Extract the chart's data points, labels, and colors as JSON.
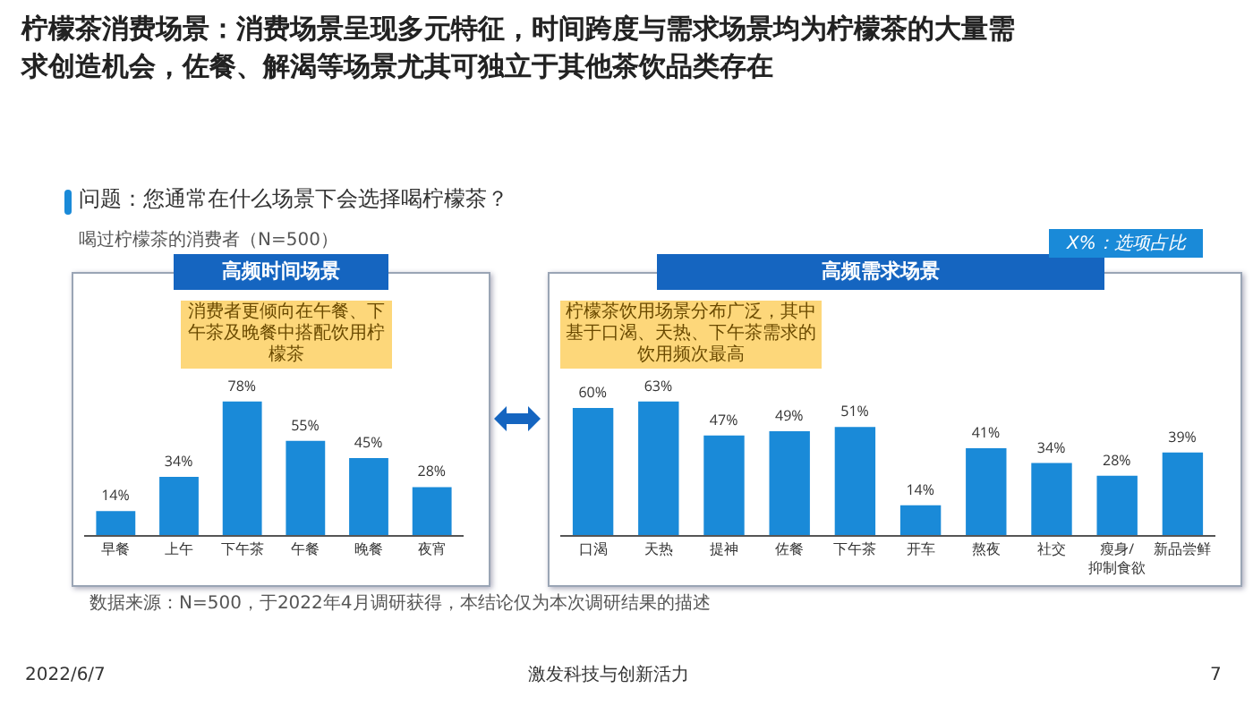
{
  "chart_data": [
    {
      "type": "bar",
      "title": "高频时间场景",
      "categories": [
        "早餐",
        "上午",
        "下午茶",
        "午餐",
        "晚餐",
        "夜宵"
      ],
      "values": [
        14,
        34,
        78,
        55,
        45,
        28
      ],
      "color": "#1a8ad8",
      "data_labels": true,
      "value_labels": [
        "14%",
        "34%",
        "78%",
        "55%",
        "45%",
        "28%"
      ],
      "annotations": [
        "柠檬茶消费场景：消费场景呈现多元特征，时间跨度与需求场景均为柠檬茶的大量需求创造机会，佐餐、解渴等场景尤其可独立于其他茶饮品类存在",
        "问题：您通常在什么场景下会选择喝柠檬茶？",
        "喝过柠檬茶的消费者（N=500）",
        "消费者更倾向在午餐、下午茶及晚餐中搭配饮用柠檬茶",
        "数据来源：N=500，于2022年4月调研获得，本结论仅为本次调研结果的描述",
        "2022/6/7",
        "激发科技与创新活力",
        "7"
      ]
    },
    {
      "type": "bar",
      "title": "高频需求场景",
      "categories": [
        "口渴",
        "天热",
        "提神",
        "佐餐",
        "下午茶",
        "开车",
        "熬夜",
        "社交",
        "瘦身/抑制食欲",
        "新品尝鲜"
      ],
      "values": [
        60,
        63,
        47,
        49,
        51,
        14,
        41,
        34,
        28,
        39
      ],
      "color": "#1a8ad8",
      "data_labels": true,
      "value_labels": [
        "60%",
        "63%",
        "47%",
        "49%",
        "51%",
        "14%",
        "41%",
        "34%",
        "28%",
        "39%"
      ],
      "annotations": [
        "X%：选项占比",
        "柠檬茶饮用场景分布广泛，其中基于口渴、天热、下午茶需求的饮用频次最高"
      ]
    }
  ]
}
